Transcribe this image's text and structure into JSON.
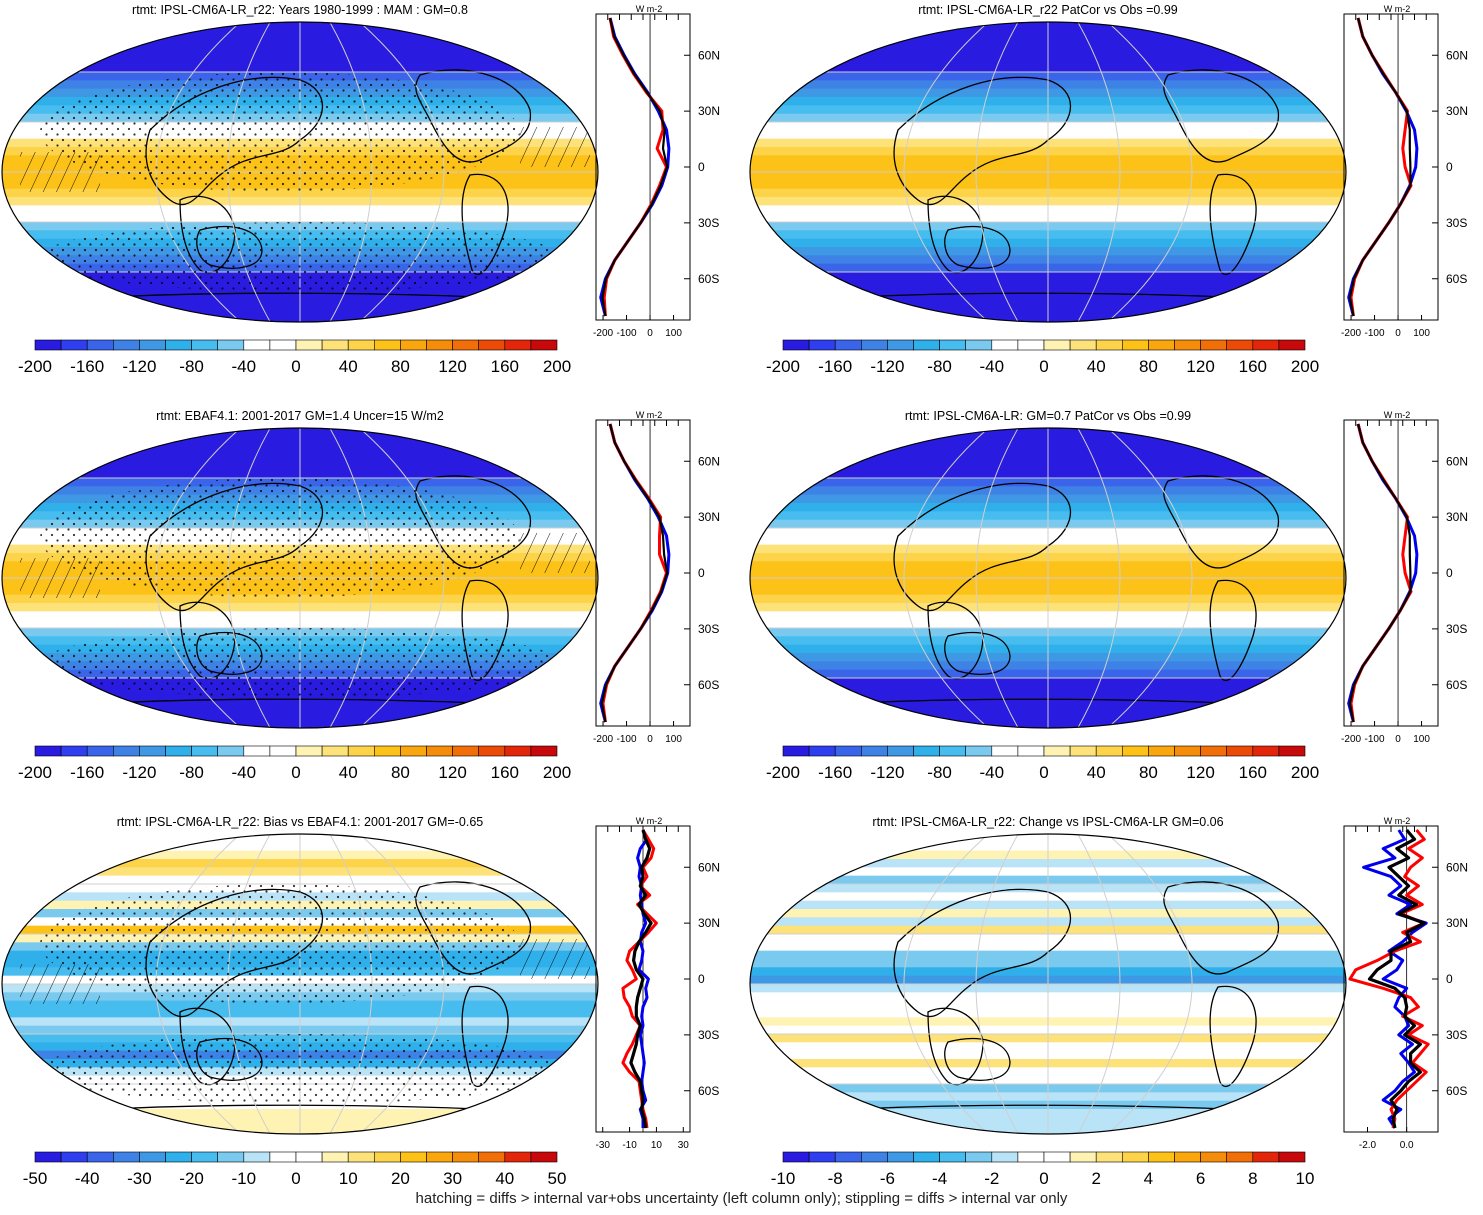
{
  "caption": "hatching = diffs > internal var+obs uncertainty (left column only); stippling = diffs > internal var only",
  "colors": {
    "main_scale": [
      "#2a1be0",
      "#2f3ff0",
      "#3a64ea",
      "#3f82e6",
      "#3f98e4",
      "#2fb0ea",
      "#46bcef",
      "#7ac9ee",
      "#ffffff",
      "#ffffff",
      "#fff3b4",
      "#fde27a",
      "#fdd34a",
      "#fcc218",
      "#f9a60f",
      "#f68d0a",
      "#f16e08",
      "#eb4b07",
      "#e3250a",
      "#c8090c"
    ],
    "diff_scale": [
      "#2a1be0",
      "#2f3ff0",
      "#3a64ea",
      "#3f82e6",
      "#3f98e4",
      "#2fb0ea",
      "#46bcef",
      "#7ac9ee",
      "#b9e3f6",
      "#ffffff",
      "#ffffff",
      "#fff3b4",
      "#fde27a",
      "#fdd34a",
      "#fcc218",
      "#f9a60f",
      "#f68d0a",
      "#f16e08",
      "#e3250a",
      "#c8090c"
    ],
    "line_model": "#ff0000",
    "line_obs": "#0000ee",
    "line_mean": "#000000"
  },
  "chart_data": [
    {
      "type": "heatmap",
      "title": "rtmt: IPSL-CM6A-LR_r22: Years 1980-1999 : MAM : GM=0.8",
      "colorbar_labels": [
        "-200",
        "-160",
        "-120",
        "-80",
        "-40",
        "0",
        "40",
        "80",
        "120",
        "160",
        "200"
      ],
      "zonal_xticks": [
        "-200",
        "-100",
        "0",
        "100"
      ],
      "zonal_xlim": [
        -230,
        170
      ],
      "zonal_units": "W m-2",
      "lat_ticks": [
        "60N",
        "30N",
        "0",
        "30S",
        "60S"
      ],
      "zonal_mean": {
        "lat": [
          80,
          70,
          60,
          50,
          40,
          30,
          20,
          10,
          0,
          -10,
          -20,
          -30,
          -40,
          -50,
          -60,
          -70,
          -80
        ],
        "model": [
          -170,
          -155,
          -115,
          -70,
          -15,
          50,
          55,
          30,
          70,
          40,
          5,
          -40,
          -95,
          -150,
          -185,
          -195,
          -190
        ],
        "obs": [
          -170,
          -150,
          -110,
          -65,
          -10,
          35,
          70,
          80,
          75,
          50,
          10,
          -40,
          -95,
          -150,
          -190,
          -210,
          -190
        ]
      },
      "hatching": true,
      "stippling": true
    },
    {
      "type": "heatmap",
      "title": "rtmt: IPSL-CM6A-LR_r22 PatCor vs Obs =0.99",
      "colorbar_labels": [
        "-200",
        "-160",
        "-120",
        "-80",
        "-40",
        "0",
        "40",
        "80",
        "120",
        "160",
        "200"
      ],
      "zonal_xticks": [
        "-200",
        "-100",
        "0",
        "100"
      ],
      "zonal_xlim": [
        -230,
        170
      ],
      "zonal_units": "W m-2",
      "lat_ticks": [
        "60N",
        "30N",
        "0",
        "30S",
        "60S"
      ],
      "zonal_mean": {
        "lat": [
          80,
          70,
          60,
          50,
          40,
          30,
          20,
          10,
          0,
          -10,
          -20,
          -30,
          -40,
          -50,
          -60,
          -70,
          -80
        ],
        "model": [
          -170,
          -150,
          -110,
          -60,
          -10,
          40,
          30,
          20,
          30,
          55,
          10,
          -40,
          -95,
          -150,
          -185,
          -200,
          -190
        ],
        "obs": [
          -170,
          -150,
          -110,
          -65,
          -10,
          35,
          70,
          80,
          75,
          50,
          10,
          -40,
          -95,
          -150,
          -190,
          -210,
          -190
        ]
      },
      "hatching": false,
      "stippling": false
    },
    {
      "type": "heatmap",
      "title": "rtmt: EBAF4.1: 2001-2017 GM=1.4 Uncer=15 W/m2",
      "colorbar_labels": [
        "-200",
        "-160",
        "-120",
        "-80",
        "-40",
        "0",
        "40",
        "80",
        "120",
        "160",
        "200"
      ],
      "zonal_xticks": [
        "-200",
        "-100",
        "0",
        "100"
      ],
      "zonal_xlim": [
        -230,
        170
      ],
      "zonal_units": "W m-2",
      "lat_ticks": [
        "60N",
        "30N",
        "0",
        "30S",
        "60S"
      ],
      "zonal_mean": {
        "lat": [
          80,
          70,
          60,
          50,
          40,
          30,
          20,
          10,
          0,
          -10,
          -20,
          -30,
          -40,
          -50,
          -60,
          -70,
          -80
        ],
        "model": [
          -170,
          -150,
          -110,
          -60,
          -5,
          45,
          40,
          40,
          70,
          45,
          5,
          -40,
          -95,
          -150,
          -185,
          -200,
          -190
        ],
        "obs": [
          -170,
          -150,
          -110,
          -65,
          -10,
          35,
          70,
          80,
          75,
          50,
          10,
          -40,
          -95,
          -150,
          -190,
          -210,
          -190
        ]
      },
      "hatching": true,
      "stippling": true
    },
    {
      "type": "heatmap",
      "title": "rtmt: IPSL-CM6A-LR: GM=0.7 PatCor vs Obs =0.99",
      "colorbar_labels": [
        "-200",
        "-160",
        "-120",
        "-80",
        "-40",
        "0",
        "40",
        "80",
        "120",
        "160",
        "200"
      ],
      "zonal_xticks": [
        "-200",
        "-100",
        "0",
        "100"
      ],
      "zonal_xlim": [
        -230,
        170
      ],
      "zonal_units": "W m-2",
      "lat_ticks": [
        "60N",
        "30N",
        "0",
        "30S",
        "60S"
      ],
      "zonal_mean": {
        "lat": [
          80,
          70,
          60,
          50,
          40,
          30,
          20,
          10,
          0,
          -10,
          -20,
          -30,
          -40,
          -50,
          -60,
          -70,
          -80
        ],
        "model": [
          -170,
          -150,
          -110,
          -60,
          -10,
          40,
          30,
          20,
          30,
          55,
          10,
          -40,
          -95,
          -150,
          -185,
          -200,
          -190
        ],
        "obs": [
          -170,
          -150,
          -110,
          -65,
          -10,
          35,
          70,
          80,
          75,
          50,
          10,
          -40,
          -95,
          -150,
          -190,
          -210,
          -190
        ]
      },
      "hatching": false,
      "stippling": false
    },
    {
      "type": "heatmap",
      "title": "rtmt: IPSL-CM6A-LR_r22: Bias vs EBAF4.1: 2001-2017 GM=-0.65",
      "colorbar_labels": [
        "-50",
        "-40",
        "-30",
        "-20",
        "-10",
        "0",
        "10",
        "20",
        "30",
        "40",
        "50"
      ],
      "zonal_xticks": [
        "-30",
        "-10",
        "10",
        "30"
      ],
      "zonal_xlim": [
        -35,
        35
      ],
      "zonal_units": "W m-2",
      "lat_ticks": [
        "60N",
        "30N",
        "0",
        "30S",
        "60S"
      ],
      "zonal_mean": {
        "lat": [
          80,
          75,
          70,
          65,
          60,
          55,
          50,
          45,
          40,
          35,
          30,
          25,
          20,
          15,
          10,
          5,
          0,
          -5,
          -10,
          -15,
          -20,
          -25,
          -30,
          -35,
          -40,
          -45,
          -50,
          -55,
          -60,
          -65,
          -70,
          -75,
          -80
        ],
        "model": [
          0,
          4,
          8,
          6,
          0,
          3,
          -2,
          5,
          -4,
          3,
          10,
          4,
          -3,
          -10,
          -12,
          -8,
          -5,
          -15,
          -14,
          -10,
          -8,
          -2,
          -5,
          -8,
          -12,
          -15,
          -10,
          -3,
          -2,
          -1,
          0,
          2,
          3
        ],
        "obs": [
          0,
          3,
          -2,
          -4,
          -2,
          -3,
          -1,
          -2,
          -1,
          0,
          2,
          -1,
          -2,
          0,
          -1,
          -3,
          4,
          2,
          3,
          0,
          -1,
          0,
          -2,
          -1,
          0,
          1,
          0,
          -1,
          0,
          2,
          -2,
          0,
          0
        ],
        "mean": [
          0,
          2,
          5,
          3,
          -1,
          0,
          -2,
          2,
          -3,
          1,
          6,
          2,
          -3,
          -6,
          -7,
          -5,
          0,
          -2,
          -4,
          -5,
          -5,
          -2,
          -4,
          -5,
          -7,
          -9,
          -6,
          -2,
          -1,
          0,
          -1,
          1,
          2
        ]
      },
      "hatching": true,
      "stippling": true
    },
    {
      "type": "heatmap",
      "title": "rtmt: IPSL-CM6A-LR_r22: Change vs IPSL-CM6A-LR GM=0.06",
      "colorbar_labels": [
        "-10",
        "-8",
        "-6",
        "-4",
        "-2",
        "0",
        "2",
        "4",
        "6",
        "8",
        "10"
      ],
      "zonal_xticks": [
        "-2.0",
        "0.0"
      ],
      "zonal_xlim": [
        -3.2,
        1.6
      ],
      "zonal_units": "W m-2",
      "lat_ticks": [
        "60N",
        "30N",
        "0",
        "30S",
        "60S"
      ],
      "zonal_mean": {
        "lat": [
          80,
          75,
          70,
          65,
          60,
          55,
          50,
          45,
          40,
          35,
          30,
          25,
          20,
          15,
          10,
          5,
          0,
          -5,
          -10,
          -15,
          -20,
          -25,
          -30,
          -35,
          -40,
          -45,
          -50,
          -55,
          -60,
          -65,
          -70,
          -75,
          -80
        ],
        "model": [
          0.5,
          0.9,
          0.1,
          0.8,
          0.2,
          -0.1,
          0.6,
          0.0,
          0.8,
          -0.3,
          0.9,
          -0.2,
          0.7,
          -0.6,
          -1.5,
          -2.6,
          -2.9,
          -1.2,
          0.2,
          0.6,
          -0.2,
          0.8,
          0.1,
          1.1,
          0.7,
          0.3,
          1.0,
          0.5,
          0.0,
          -0.5,
          -0.8,
          -0.6,
          -0.7
        ],
        "obs": [
          -0.4,
          -0.1,
          -1.2,
          -0.6,
          -2.2,
          -0.8,
          -0.3,
          -0.9,
          0.2,
          -0.5,
          1.0,
          0.3,
          -0.2,
          -0.9,
          -0.2,
          -0.5,
          -1.2,
          0.0,
          -0.4,
          -0.6,
          -0.1,
          0.1,
          -0.4,
          0.3,
          -0.3,
          0.1,
          0.4,
          -0.2,
          -0.6,
          -1.2,
          -0.3,
          -0.9,
          -0.6
        ],
        "mean": [
          0.0,
          0.4,
          -0.5,
          0.1,
          -0.9,
          -0.4,
          0.1,
          -0.4,
          0.5,
          -0.4,
          0.9,
          0.0,
          0.2,
          -0.8,
          -0.8,
          -1.5,
          -1.9,
          -0.6,
          -0.1,
          0.0,
          -0.1,
          0.4,
          -0.1,
          0.7,
          0.2,
          0.2,
          0.7,
          0.1,
          -0.3,
          -0.8,
          -0.5,
          -0.7,
          -0.6
        ]
      },
      "hatching": false,
      "stippling": false
    }
  ]
}
